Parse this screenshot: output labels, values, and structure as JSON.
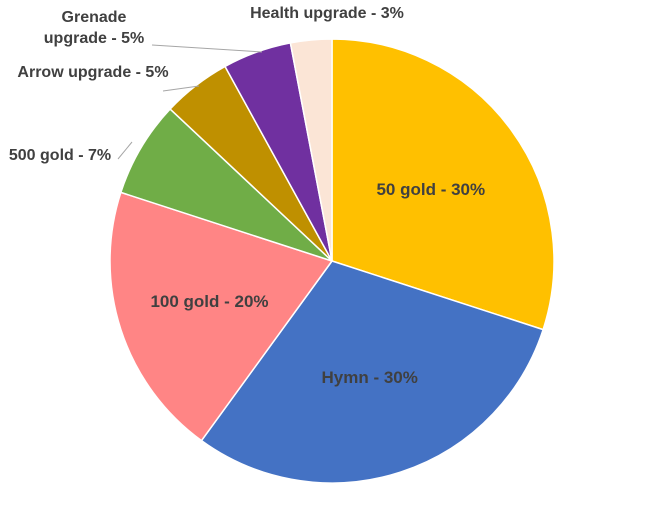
{
  "chart_data": {
    "type": "pie",
    "start_angle_deg": 0,
    "direction": "clockwise",
    "legend": "none",
    "slices": [
      {
        "label": "50 gold",
        "value": 30,
        "label_text": "50 gold - 30%",
        "color": "#FFC000"
      },
      {
        "label": "Hymn",
        "value": 30,
        "label_text": "Hymn - 30%",
        "color": "#4472C4"
      },
      {
        "label": "100 gold",
        "value": 20,
        "label_text": "100 gold - 20%",
        "color": "#FF8585"
      },
      {
        "label": "500 gold",
        "value": 7,
        "label_text": "500 gold - 7%",
        "color": "#70AD47"
      },
      {
        "label": "Arrow upgrade",
        "value": 5,
        "label_text": "Arrow upgrade - 5%",
        "color": "#BF9000"
      },
      {
        "label": "Grenade upgrade",
        "value": 5,
        "label_text": "Grenade upgrade - 5%",
        "label_lines": [
          "Grenade",
          "upgrade - 5%"
        ],
        "color": "#7030A0"
      },
      {
        "label": "Health upgrade",
        "value": 3,
        "label_text": "Health upgrade - 3%",
        "color": "#FBE5D6"
      }
    ]
  }
}
